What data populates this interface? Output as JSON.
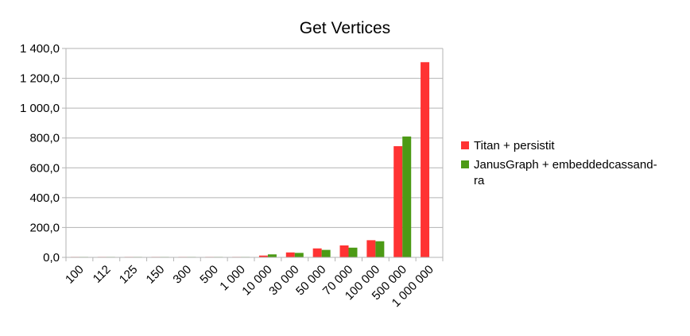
{
  "chart_data": {
    "type": "bar",
    "title": "Get Vertices",
    "xlabel": "",
    "ylabel": "",
    "categories": [
      "100",
      "112",
      "125",
      "150",
      "300",
      "500",
      "1 000",
      "10 000",
      "30 000",
      "50 000",
      "70 000",
      "100 000",
      "500 000",
      "1 000 000"
    ],
    "ylim": [
      0,
      1400
    ],
    "yticks": [
      0,
      200,
      400,
      600,
      800,
      1000,
      1200,
      1400
    ],
    "ytick_labels": [
      "0,0",
      "200,0",
      "400,0",
      "600,0",
      "800,0",
      "1 000,0",
      "1 200,0",
      "1 400,0"
    ],
    "grid": "horizontal",
    "legend_position": "right",
    "series": [
      {
        "name": "Titan + persistit",
        "color": "#ff3333",
        "values": [
          0.3,
          0.4,
          0.5,
          0.6,
          1.2,
          1.5,
          2.5,
          12,
          33,
          60,
          80,
          115,
          745,
          1308
        ]
      },
      {
        "name": "JanusGraph + embeddedcassand-\nra",
        "legend_lines": [
          "JanusGraph + embeddedcassand-",
          "ra"
        ],
        "color": "#4c9a15",
        "values": [
          0.3,
          0.4,
          0.5,
          0.6,
          1.0,
          1.3,
          3,
          20,
          30,
          50,
          65,
          108,
          810,
          null
        ]
      }
    ]
  }
}
